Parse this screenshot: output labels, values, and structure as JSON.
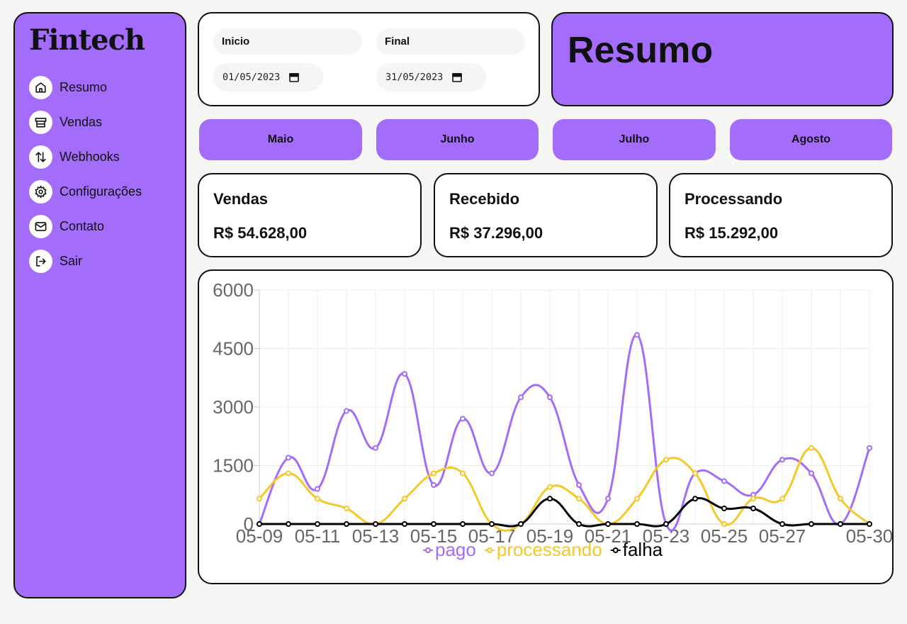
{
  "app": {
    "logo": "Fintech"
  },
  "sidebar": {
    "items": [
      {
        "label": "Resumo",
        "icon": "home-icon"
      },
      {
        "label": "Vendas",
        "icon": "store-icon"
      },
      {
        "label": "Webhooks",
        "icon": "arrows-up-down-icon"
      },
      {
        "label": "Configurações",
        "icon": "gear-icon"
      },
      {
        "label": "Contato",
        "icon": "mail-icon"
      },
      {
        "label": "Sair",
        "icon": "logout-icon"
      }
    ]
  },
  "filters": {
    "start_label": "Inicio",
    "start_value": "01/05/2023",
    "end_label": "Final",
    "end_value": "31/05/2023"
  },
  "header": {
    "title": "Resumo"
  },
  "months": [
    "Maio",
    "Junho",
    "Julho",
    "Agosto"
  ],
  "stats": [
    {
      "title": "Vendas",
      "value": "R$ 54.628,00"
    },
    {
      "title": "Recebido",
      "value": "R$ 37.296,00"
    },
    {
      "title": "Processando",
      "value": "R$ 15.292,00"
    }
  ],
  "colors": {
    "accent": "#a36cfa",
    "pago": "#a36cfa",
    "processando": "#f5c82a",
    "falha": "#000000"
  },
  "chart_data": {
    "type": "line",
    "title": "",
    "xlabel": "",
    "ylabel": "",
    "ylim": [
      0,
      6000
    ],
    "yticks": [
      0,
      1500,
      3000,
      4500,
      6000
    ],
    "legend_position": "bottom",
    "x": [
      "05-09",
      "05-10",
      "05-11",
      "05-12",
      "05-13",
      "05-14",
      "05-15",
      "05-16",
      "05-17",
      "05-18",
      "05-19",
      "05-20",
      "05-21",
      "05-22",
      "05-23",
      "05-24",
      "05-25",
      "05-26",
      "05-27",
      "05-28",
      "05-29",
      "05-30"
    ],
    "xtick_labels": [
      "05-09",
      "05-11",
      "05-13",
      "05-15",
      "05-17",
      "05-19",
      "05-21",
      "05-23",
      "05-25",
      "05-27",
      "05-30"
    ],
    "series": [
      {
        "name": "pago",
        "color": "#a36cfa",
        "values": [
          0,
          1700,
          900,
          2900,
          1950,
          3850,
          1000,
          2700,
          1300,
          3250,
          3250,
          1000,
          650,
          4850,
          0,
          1300,
          1100,
          750,
          1650,
          1300,
          0,
          1950
        ]
      },
      {
        "name": "processando",
        "color": "#f5c82a",
        "values": [
          650,
          1300,
          650,
          400,
          0,
          650,
          1300,
          1300,
          0,
          0,
          950,
          650,
          0,
          650,
          1650,
          1300,
          0,
          650,
          650,
          1950,
          650,
          0
        ]
      },
      {
        "name": "falha",
        "color": "#000000",
        "values": [
          0,
          0,
          0,
          0,
          0,
          0,
          0,
          0,
          0,
          0,
          650,
          0,
          0,
          0,
          0,
          650,
          400,
          400,
          0,
          0,
          0,
          0
        ]
      }
    ]
  }
}
